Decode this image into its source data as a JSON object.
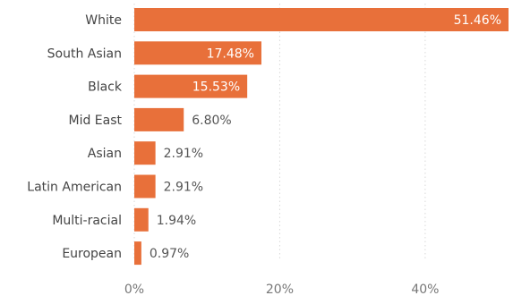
{
  "chart_data": {
    "type": "bar",
    "orientation": "horizontal",
    "categories": [
      "White",
      "South Asian",
      "Black",
      "Mid East",
      "Asian",
      "Latin American",
      "Multi-racial",
      "European"
    ],
    "values": [
      51.46,
      17.48,
      15.53,
      6.8,
      2.91,
      2.91,
      1.94,
      0.97
    ],
    "data_labels": [
      "51.46%",
      "17.48%",
      "15.53%",
      "6.80%",
      "2.91%",
      "2.91%",
      "1.94%",
      "0.97%"
    ],
    "x_ticks": [
      0,
      20,
      40
    ],
    "x_tick_labels": [
      "0%",
      "20%",
      "40%"
    ],
    "xlim": [
      0,
      51.46
    ],
    "grid": "vertical dotted",
    "legend": "none",
    "title": "",
    "xlabel": "",
    "ylabel": "",
    "colors": {
      "bar": "#e8703a",
      "label_inside": "#ffffff",
      "label_outside": "#555555",
      "category_text": "#444444",
      "tick_text": "#777777",
      "grid": "#d9d9d9"
    }
  }
}
